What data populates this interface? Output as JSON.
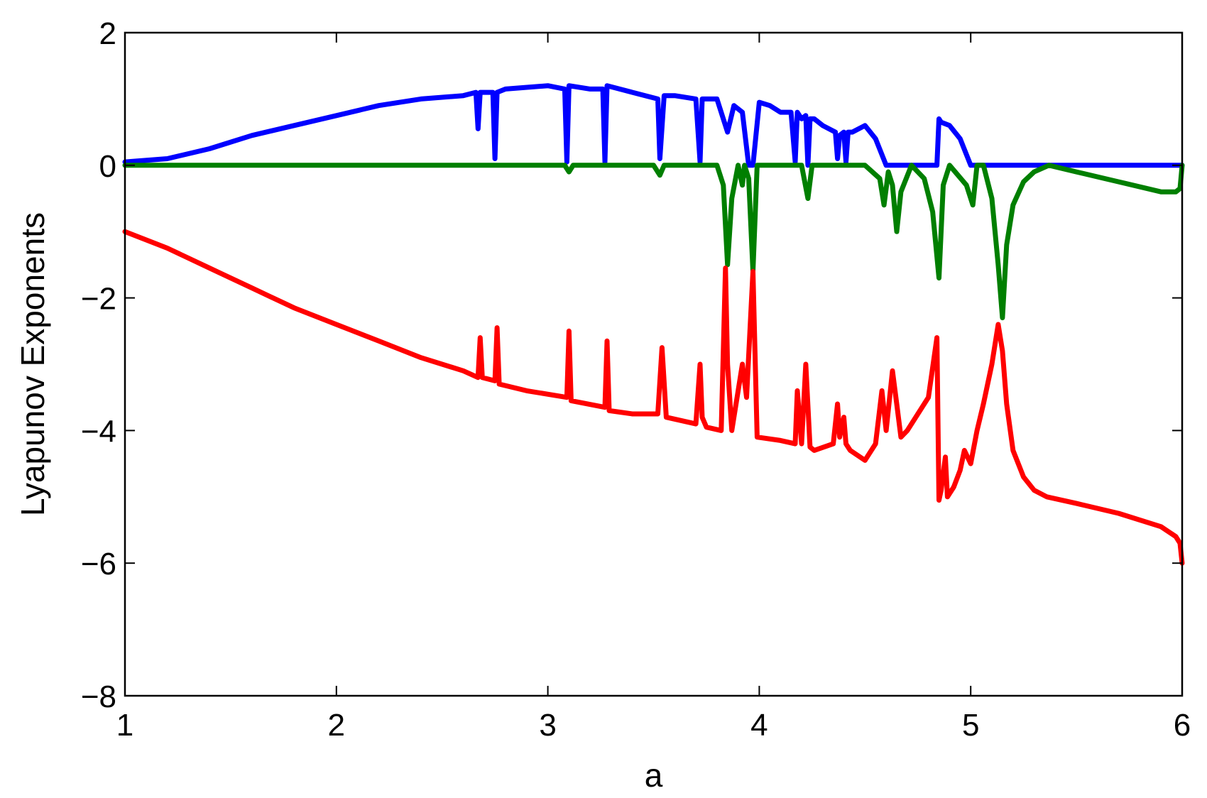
{
  "chart_data": {
    "type": "line",
    "title": "",
    "xlabel": "a",
    "ylabel": "Lyapunov Exponents",
    "xlim": [
      1,
      6
    ],
    "ylim": [
      -8,
      2
    ],
    "xticks": [
      1,
      2,
      3,
      4,
      5,
      6
    ],
    "yticks": [
      -8,
      -6,
      -4,
      -2,
      0,
      2
    ],
    "xtick_labels": [
      "1",
      "2",
      "3",
      "4",
      "5",
      "6"
    ],
    "ytick_labels": [
      "−8",
      "−6",
      "−4",
      "−2",
      "0",
      "2"
    ],
    "grid": false,
    "legend": "none",
    "series": [
      {
        "color": "#0000ff",
        "x": [
          1.0,
          1.2,
          1.4,
          1.6,
          1.8,
          2.0,
          2.2,
          2.4,
          2.6,
          2.66,
          2.67,
          2.68,
          2.74,
          2.75,
          2.76,
          2.8,
          3.0,
          3.08,
          3.09,
          3.1,
          3.2,
          3.26,
          3.27,
          3.28,
          3.4,
          3.52,
          3.53,
          3.55,
          3.6,
          3.7,
          3.72,
          3.73,
          3.75,
          3.8,
          3.85,
          3.88,
          3.92,
          3.95,
          3.97,
          4.0,
          4.05,
          4.1,
          4.15,
          4.17,
          4.18,
          4.2,
          4.22,
          4.23,
          4.24,
          4.26,
          4.3,
          4.36,
          4.37,
          4.38,
          4.4,
          4.41,
          4.42,
          4.44,
          4.5,
          4.55,
          4.6,
          4.65,
          4.7,
          4.84,
          4.85,
          4.86,
          4.9,
          4.95,
          5.0,
          5.05,
          5.1,
          5.2,
          5.4,
          5.6,
          5.8,
          6.0
        ],
        "y": [
          0.05,
          0.1,
          0.25,
          0.45,
          0.6,
          0.75,
          0.9,
          1.0,
          1.05,
          1.1,
          0.55,
          1.1,
          1.1,
          0.1,
          1.1,
          1.15,
          1.2,
          1.15,
          0.05,
          1.2,
          1.15,
          1.15,
          0.05,
          1.2,
          1.1,
          1.0,
          0.1,
          1.05,
          1.05,
          1.0,
          0.05,
          1.0,
          1.0,
          1.0,
          0.5,
          0.9,
          0.8,
          0.0,
          0.0,
          0.95,
          0.9,
          0.8,
          0.8,
          0.05,
          0.8,
          0.7,
          0.75,
          0.0,
          0.7,
          0.7,
          0.6,
          0.5,
          0.1,
          0.45,
          0.5,
          0.05,
          0.5,
          0.5,
          0.6,
          0.4,
          0.0,
          0.0,
          0.0,
          0.0,
          0.7,
          0.65,
          0.6,
          0.4,
          0.0,
          0.0,
          0.0,
          0.0,
          0.0,
          0.0,
          0.0,
          0.0
        ]
      },
      {
        "color": "#007f00",
        "x": [
          1.0,
          1.5,
          2.0,
          2.5,
          3.0,
          3.08,
          3.1,
          3.12,
          3.5,
          3.53,
          3.55,
          3.6,
          3.8,
          3.83,
          3.85,
          3.87,
          3.9,
          3.92,
          3.93,
          3.95,
          3.97,
          3.99,
          4.2,
          4.23,
          4.25,
          4.28,
          4.5,
          4.57,
          4.59,
          4.61,
          4.63,
          4.65,
          4.67,
          4.72,
          4.78,
          4.82,
          4.85,
          4.87,
          4.9,
          4.98,
          5.01,
          5.03,
          5.06,
          5.1,
          5.13,
          5.15,
          5.17,
          5.2,
          5.25,
          5.3,
          5.37,
          5.5,
          5.7,
          5.9,
          5.97,
          5.99,
          6.0
        ],
        "y": [
          0.0,
          0.0,
          0.0,
          0.0,
          0.0,
          0.0,
          -0.1,
          0.0,
          0.0,
          -0.15,
          0.0,
          0.0,
          0.0,
          -0.3,
          -1.5,
          -0.5,
          0.0,
          -0.3,
          0.0,
          -0.2,
          -1.6,
          0.0,
          0.0,
          -0.5,
          0.0,
          0.0,
          0.0,
          -0.2,
          -0.6,
          -0.1,
          -0.3,
          -1.0,
          -0.4,
          0.0,
          -0.2,
          -0.7,
          -1.7,
          -0.3,
          0.0,
          -0.3,
          -0.6,
          0.0,
          0.0,
          -0.5,
          -1.5,
          -2.3,
          -1.2,
          -0.6,
          -0.25,
          -0.1,
          0.0,
          -0.1,
          -0.25,
          -0.4,
          -0.4,
          -0.35,
          0.0
        ]
      },
      {
        "color": "#ff0000",
        "x": [
          1.0,
          1.2,
          1.4,
          1.6,
          1.8,
          2.0,
          2.2,
          2.4,
          2.6,
          2.67,
          2.68,
          2.69,
          2.75,
          2.76,
          2.77,
          2.9,
          3.09,
          3.1,
          3.11,
          3.27,
          3.28,
          3.29,
          3.4,
          3.52,
          3.54,
          3.56,
          3.7,
          3.72,
          3.73,
          3.75,
          3.82,
          3.84,
          3.85,
          3.87,
          3.92,
          3.94,
          3.97,
          3.99,
          4.1,
          4.17,
          4.18,
          4.2,
          4.22,
          4.24,
          4.26,
          4.35,
          4.37,
          4.38,
          4.4,
          4.41,
          4.43,
          4.5,
          4.55,
          4.58,
          4.6,
          4.63,
          4.65,
          4.67,
          4.7,
          4.8,
          4.84,
          4.85,
          4.86,
          4.88,
          4.89,
          4.92,
          4.95,
          4.97,
          5.0,
          5.03,
          5.06,
          5.1,
          5.13,
          5.15,
          5.17,
          5.2,
          5.25,
          5.3,
          5.36,
          5.5,
          5.7,
          5.9,
          5.97,
          5.99,
          6.0
        ],
        "y": [
          -1.0,
          -1.25,
          -1.55,
          -1.85,
          -2.15,
          -2.4,
          -2.65,
          -2.9,
          -3.1,
          -3.2,
          -2.6,
          -3.2,
          -3.25,
          -2.45,
          -3.3,
          -3.4,
          -3.5,
          -2.5,
          -3.55,
          -3.65,
          -2.65,
          -3.7,
          -3.75,
          -3.75,
          -2.75,
          -3.8,
          -3.9,
          -3.0,
          -3.8,
          -3.95,
          -4.0,
          -1.55,
          -3.0,
          -4.0,
          -3.0,
          -3.5,
          -1.6,
          -4.1,
          -4.15,
          -4.2,
          -3.4,
          -4.2,
          -3.0,
          -4.25,
          -4.3,
          -4.2,
          -3.6,
          -4.1,
          -3.8,
          -4.2,
          -4.3,
          -4.45,
          -4.2,
          -3.4,
          -4.0,
          -3.1,
          -3.6,
          -4.1,
          -4.0,
          -3.5,
          -2.6,
          -5.05,
          -4.9,
          -4.4,
          -5.0,
          -4.85,
          -4.6,
          -4.3,
          -4.5,
          -4.0,
          -3.6,
          -3.0,
          -2.4,
          -2.8,
          -3.6,
          -4.3,
          -4.7,
          -4.9,
          -5.0,
          -5.1,
          -5.25,
          -5.45,
          -5.6,
          -5.7,
          -6.0
        ]
      }
    ]
  }
}
